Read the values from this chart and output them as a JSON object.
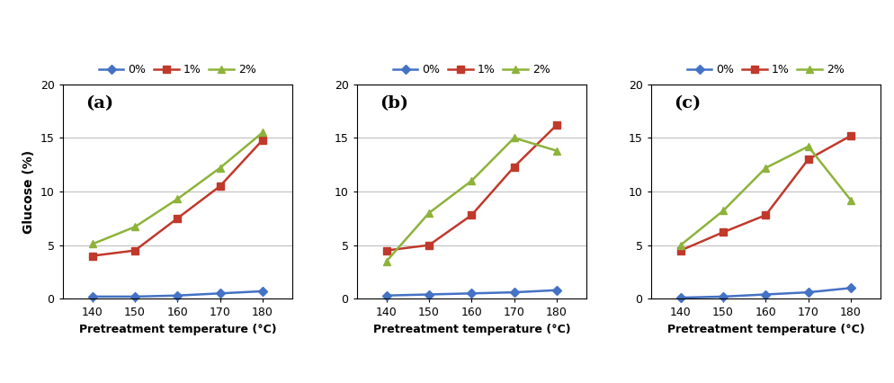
{
  "temperatures": [
    140,
    150,
    160,
    170,
    180
  ],
  "panels": [
    {
      "label": "(a)",
      "series": {
        "0%": [
          0.2,
          0.2,
          0.3,
          0.5,
          0.7
        ],
        "1%": [
          4.0,
          4.5,
          7.5,
          10.5,
          14.8
        ],
        "2%": [
          5.1,
          6.7,
          9.3,
          12.2,
          15.5
        ]
      }
    },
    {
      "label": "(b)",
      "series": {
        "0%": [
          0.3,
          0.4,
          0.5,
          0.6,
          0.8
        ],
        "1%": [
          4.5,
          5.0,
          7.8,
          12.3,
          16.2
        ],
        "2%": [
          3.5,
          8.0,
          11.0,
          15.0,
          13.8
        ]
      }
    },
    {
      "label": "(c)",
      "series": {
        "0%": [
          0.1,
          0.2,
          0.4,
          0.6,
          1.0
        ],
        "1%": [
          4.5,
          6.2,
          7.8,
          13.0,
          15.2
        ],
        "2%": [
          5.0,
          8.2,
          12.2,
          14.2,
          9.2
        ]
      }
    }
  ],
  "colors": {
    "0%": "#4472c4",
    "1%": "#c0392b",
    "2%": "#8db33a"
  },
  "markers": {
    "0%": "D",
    "1%": "s",
    "2%": "^"
  },
  "xlabel": "Pretreatment temperature (°C)",
  "ylabel": "Glucose (%)",
  "ylim": [
    0,
    20
  ],
  "yticks": [
    0,
    5,
    10,
    15,
    20
  ],
  "legend_order": [
    "0%",
    "1%",
    "2%"
  ],
  "background_color": "#ffffff"
}
